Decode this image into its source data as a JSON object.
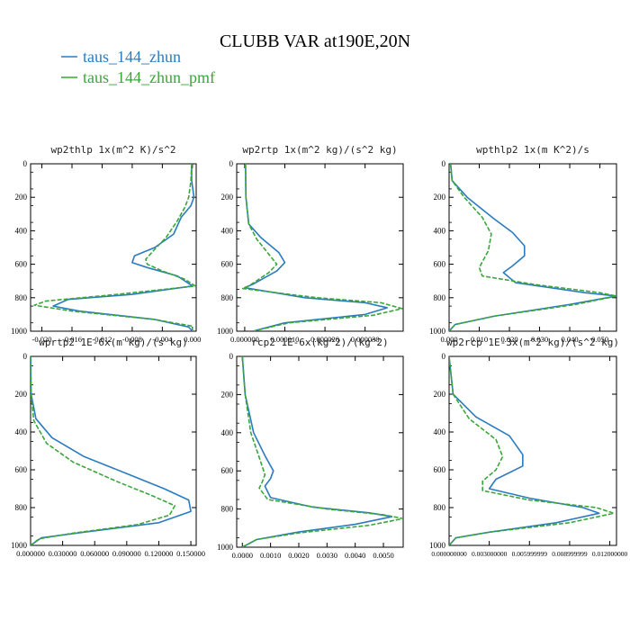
{
  "figure": {
    "title": "CLUBB VAR at190E,20N",
    "legend": [
      {
        "label": "taus_144_zhun",
        "color": "#2a7bbf"
      },
      {
        "label": "taus_144_zhun_pmf",
        "color": "#3aa63a"
      }
    ]
  },
  "chart_data": [
    {
      "type": "line",
      "title": "wp2thlp  1x(m^2 K)/s^2",
      "xlim": [
        -0.0215,
        0.0005
      ],
      "ylim": [
        1000,
        0
      ],
      "y_inverted": true,
      "xticks": [
        "-0.020",
        "-0.016",
        "-0.012",
        "-0.008",
        "-0.004",
        "0.000"
      ],
      "xtick_values": [
        -0.02,
        -0.016,
        -0.012,
        -0.008,
        -0.004,
        0.0
      ],
      "yticks": [
        "0",
        "200",
        "400",
        "600",
        "800",
        "1000"
      ],
      "ytick_values": [
        0,
        200,
        400,
        600,
        800,
        1000
      ],
      "grid": false,
      "series": [
        {
          "name": "taus_144_zhun",
          "color": "#2a7bbf",
          "dash": false,
          "points": [
            [
              -0.0001,
              0
            ],
            [
              -0.0001,
              100
            ],
            [
              0.0002,
              200
            ],
            [
              -0.0002,
              250
            ],
            [
              -0.0015,
              320
            ],
            [
              -0.0025,
              420
            ],
            [
              -0.005,
              500
            ],
            [
              -0.0077,
              550
            ],
            [
              -0.008,
              590
            ],
            [
              -0.006,
              620
            ],
            [
              -0.002,
              670
            ],
            [
              0.0,
              730
            ],
            [
              -0.008,
              780
            ],
            [
              -0.0165,
              810
            ],
            [
              -0.0185,
              850
            ],
            [
              -0.015,
              880
            ],
            [
              -0.005,
              930
            ],
            [
              -0.0005,
              975
            ],
            [
              0.0,
              1000
            ]
          ]
        },
        {
          "name": "taus_144_zhun_pmf",
          "color": "#3aa63a",
          "dash": true,
          "points": [
            [
              -0.0001,
              0
            ],
            [
              -0.0002,
              100
            ],
            [
              -0.0005,
              200
            ],
            [
              -0.001,
              260
            ],
            [
              -0.002,
              340
            ],
            [
              -0.0035,
              440
            ],
            [
              -0.005,
              510
            ],
            [
              -0.0062,
              570
            ],
            [
              -0.006,
              600
            ],
            [
              -0.004,
              640
            ],
            [
              -0.001,
              690
            ],
            [
              0.0004,
              730
            ],
            [
              -0.01,
              780
            ],
            [
              -0.0195,
              820
            ],
            [
              -0.021,
              845
            ],
            [
              -0.016,
              880
            ],
            [
              -0.005,
              930
            ],
            [
              0.0,
              970
            ],
            [
              0.0,
              1000
            ]
          ]
        }
      ]
    },
    {
      "type": "line",
      "title": "wp2rtp  1x(m^2 kg)/(s^2 kg)",
      "xlim": [
        -2e-06,
        3.95e-05
      ],
      "ylim": [
        1000,
        0
      ],
      "y_inverted": true,
      "xticks": [
        "0.000000",
        "0.000010",
        "0.000020",
        "0.000030"
      ],
      "xtick_values": [
        0.0,
        1e-05,
        2e-05,
        3e-05
      ],
      "yticks": [
        "0",
        "200",
        "400",
        "600",
        "800",
        "1000"
      ],
      "ytick_values": [
        0,
        200,
        400,
        600,
        800,
        1000
      ],
      "grid": false,
      "series": [
        {
          "name": "taus_144_zhun",
          "color": "#2a7bbf",
          "dash": false,
          "points": [
            [
              2e-07,
              0
            ],
            [
              3e-07,
              200
            ],
            [
              1e-06,
              360
            ],
            [
              4e-06,
              440
            ],
            [
              8.5e-06,
              530
            ],
            [
              1e-05,
              590
            ],
            [
              8e-06,
              640
            ],
            [
              2e-06,
              720
            ],
            [
              0.0,
              740
            ],
            [
              1.5e-05,
              800
            ],
            [
              3e-05,
              830
            ],
            [
              3.55e-05,
              860
            ],
            [
              3e-05,
              900
            ],
            [
              1e-05,
              950
            ],
            [
              2e-06,
              1000
            ]
          ]
        },
        {
          "name": "taus_144_zhun_pmf",
          "color": "#3aa63a",
          "dash": true,
          "points": [
            [
              2e-07,
              0
            ],
            [
              3e-07,
              200
            ],
            [
              1e-06,
              360
            ],
            [
              3e-06,
              450
            ],
            [
              6e-06,
              540
            ],
            [
              8e-06,
              600
            ],
            [
              6e-06,
              650
            ],
            [
              1e-06,
              730
            ],
            [
              -5e-07,
              745
            ],
            [
              1.8e-05,
              800
            ],
            [
              3.4e-05,
              830
            ],
            [
              3.92e-05,
              865
            ],
            [
              3.2e-05,
              905
            ],
            [
              1.1e-05,
              950
            ],
            [
              2e-06,
              1000
            ]
          ]
        }
      ]
    },
    {
      "type": "line",
      "title": "wpthlp2  1x(m K^2)/s",
      "xlim": [
        0.0,
        0.0555
      ],
      "ylim": [
        1000,
        0
      ],
      "y_inverted": true,
      "xticks": [
        "0.000",
        "0.010",
        "0.020",
        "0.030",
        "0.040",
        "0.050"
      ],
      "xtick_values": [
        0.0,
        0.01,
        0.02,
        0.03,
        0.04,
        0.05
      ],
      "yticks": [
        "0",
        "200",
        "400",
        "600",
        "800",
        "1000"
      ],
      "ytick_values": [
        0,
        200,
        400,
        600,
        800,
        1000
      ],
      "grid": false,
      "series": [
        {
          "name": "taus_144_zhun",
          "color": "#2a7bbf",
          "dash": false,
          "points": [
            [
              0.0005,
              0
            ],
            [
              0.001,
              100
            ],
            [
              0.006,
              200
            ],
            [
              0.015,
              330
            ],
            [
              0.021,
              410
            ],
            [
              0.025,
              490
            ],
            [
              0.025,
              550
            ],
            [
              0.021,
              610
            ],
            [
              0.018,
              650
            ],
            [
              0.022,
              710
            ],
            [
              0.045,
              770
            ],
            [
              0.0555,
              790
            ],
            [
              0.04,
              840
            ],
            [
              0.015,
              910
            ],
            [
              0.002,
              960
            ],
            [
              0.0,
              1000
            ]
          ]
        },
        {
          "name": "taus_144_zhun_pmf",
          "color": "#3aa63a",
          "dash": true,
          "points": [
            [
              0.0005,
              0
            ],
            [
              0.001,
              100
            ],
            [
              0.005,
              200
            ],
            [
              0.011,
              320
            ],
            [
              0.014,
              420
            ],
            [
              0.013,
              520
            ],
            [
              0.01,
              620
            ],
            [
              0.011,
              670
            ],
            [
              0.028,
              720
            ],
            [
              0.05,
              770
            ],
            [
              0.0555,
              790
            ],
            [
              0.042,
              840
            ],
            [
              0.015,
              910
            ],
            [
              0.002,
              960
            ],
            [
              0.0,
              1000
            ]
          ]
        }
      ]
    },
    {
      "type": "line",
      "title": "wprtp2  1E-6x(m kg)/(s kg)",
      "xlim": [
        0.0,
        0.155
      ],
      "ylim": [
        1000,
        0
      ],
      "y_inverted": true,
      "xticks": [
        "0.000000",
        "0.030000",
        "0.060000",
        "0.090000",
        "0.120000",
        "0.150000"
      ],
      "xtick_values": [
        0.0,
        0.03,
        0.06,
        0.09,
        0.12,
        0.15
      ],
      "yticks": [
        "0",
        "200",
        "400",
        "600",
        "800",
        "1000"
      ],
      "ytick_values": [
        0,
        200,
        400,
        600,
        800,
        1000
      ],
      "grid": false,
      "series": [
        {
          "name": "taus_144_zhun",
          "color": "#2a7bbf",
          "dash": false,
          "points": [
            [
              0.0,
              0
            ],
            [
              0.0005,
              200
            ],
            [
              0.005,
              330
            ],
            [
              0.02,
              430
            ],
            [
              0.05,
              530
            ],
            [
              0.09,
              620
            ],
            [
              0.125,
              700
            ],
            [
              0.148,
              760
            ],
            [
              0.15,
              820
            ],
            [
              0.12,
              880
            ],
            [
              0.05,
              930
            ],
            [
              0.01,
              960
            ],
            [
              0.0,
              1000
            ]
          ]
        },
        {
          "name": "taus_144_zhun_pmf",
          "color": "#3aa63a",
          "dash": true,
          "points": [
            [
              0.0,
              0
            ],
            [
              0.0005,
              200
            ],
            [
              0.003,
              340
            ],
            [
              0.015,
              460
            ],
            [
              0.04,
              560
            ],
            [
              0.08,
              660
            ],
            [
              0.115,
              740
            ],
            [
              0.135,
              790
            ],
            [
              0.13,
              840
            ],
            [
              0.1,
              890
            ],
            [
              0.04,
              935
            ],
            [
              0.008,
              965
            ],
            [
              0.0,
              1000
            ]
          ]
        }
      ]
    },
    {
      "type": "line",
      "title": "rcp2  1E-6x(kg^2)/(kg^2)",
      "xlim": [
        -0.0002,
        0.0057
      ],
      "ylim": [
        1000,
        0
      ],
      "y_inverted": true,
      "xticks": [
        "0.0000",
        "0.0010",
        "0.0020",
        "0.0030",
        "0.0040",
        "0.0050"
      ],
      "xtick_values": [
        0.0,
        0.001,
        0.002,
        0.003,
        0.004,
        0.005
      ],
      "yticks": [
        "0",
        "200",
        "400",
        "600",
        "800",
        "1000"
      ],
      "ytick_values": [
        0,
        200,
        400,
        600,
        800,
        1000
      ],
      "grid": false,
      "series": [
        {
          "name": "taus_144_zhun",
          "color": "#2a7bbf",
          "dash": false,
          "points": [
            [
              0.0,
              0
            ],
            [
              0.0001,
              200
            ],
            [
              0.0004,
              400
            ],
            [
              0.0008,
              520
            ],
            [
              0.0011,
              600
            ],
            [
              0.001,
              640
            ],
            [
              0.0008,
              680
            ],
            [
              0.001,
              740
            ],
            [
              0.0025,
              790
            ],
            [
              0.0045,
              820
            ],
            [
              0.0053,
              840
            ],
            [
              0.004,
              880
            ],
            [
              0.002,
              920
            ],
            [
              0.0005,
              960
            ],
            [
              0.0,
              1000
            ]
          ]
        },
        {
          "name": "taus_144_zhun_pmf",
          "color": "#3aa63a",
          "dash": true,
          "points": [
            [
              0.0,
              0
            ],
            [
              0.0001,
              200
            ],
            [
              0.0003,
              400
            ],
            [
              0.0006,
              530
            ],
            [
              0.0008,
              620
            ],
            [
              0.0007,
              660
            ],
            [
              0.0006,
              690
            ],
            [
              0.0009,
              750
            ],
            [
              0.003,
              800
            ],
            [
              0.005,
              830
            ],
            [
              0.0057,
              850
            ],
            [
              0.0045,
              885
            ],
            [
              0.002,
              925
            ],
            [
              0.0005,
              960
            ],
            [
              0.0,
              1000
            ]
          ]
        }
      ]
    },
    {
      "type": "line",
      "title": "wp2rcp  1E-3x(m^2 kg)/(s^2 kg)",
      "xlim": [
        0.0,
        0.0125
      ],
      "ylim": [
        1000,
        0
      ],
      "y_inverted": true,
      "xticks": [
        "0.000000000",
        "0.003000000",
        "0.005999999",
        "0.008999999",
        "0.012000000"
      ],
      "xtick_values": [
        0.0,
        0.003,
        0.006,
        0.009,
        0.012
      ],
      "yticks": [
        "0",
        "200",
        "400",
        "600",
        "800",
        "1000"
      ],
      "ytick_values": [
        0,
        200,
        400,
        600,
        800,
        1000
      ],
      "grid": false,
      "series": [
        {
          "name": "taus_144_zhun",
          "color": "#2a7bbf",
          "dash": false,
          "points": [
            [
              0.0,
              0
            ],
            [
              0.0003,
              200
            ],
            [
              0.002,
              320
            ],
            [
              0.0045,
              420
            ],
            [
              0.0055,
              520
            ],
            [
              0.0055,
              580
            ],
            [
              0.0035,
              650
            ],
            [
              0.003,
              700
            ],
            [
              0.006,
              750
            ],
            [
              0.01,
              800
            ],
            [
              0.0112,
              830
            ],
            [
              0.008,
              880
            ],
            [
              0.003,
              930
            ],
            [
              0.0005,
              960
            ],
            [
              0.0,
              1000
            ]
          ]
        },
        {
          "name": "taus_144_zhun_pmf",
          "color": "#3aa63a",
          "dash": true,
          "points": [
            [
              0.0,
              0
            ],
            [
              0.0003,
              200
            ],
            [
              0.0015,
              330
            ],
            [
              0.0035,
              440
            ],
            [
              0.004,
              530
            ],
            [
              0.0035,
              600
            ],
            [
              0.0025,
              660
            ],
            [
              0.0025,
              710
            ],
            [
              0.006,
              760
            ],
            [
              0.011,
              800
            ],
            [
              0.0123,
              830
            ],
            [
              0.009,
              880
            ],
            [
              0.003,
              930
            ],
            [
              0.0005,
              960
            ],
            [
              0.0,
              1000
            ]
          ]
        }
      ]
    }
  ]
}
